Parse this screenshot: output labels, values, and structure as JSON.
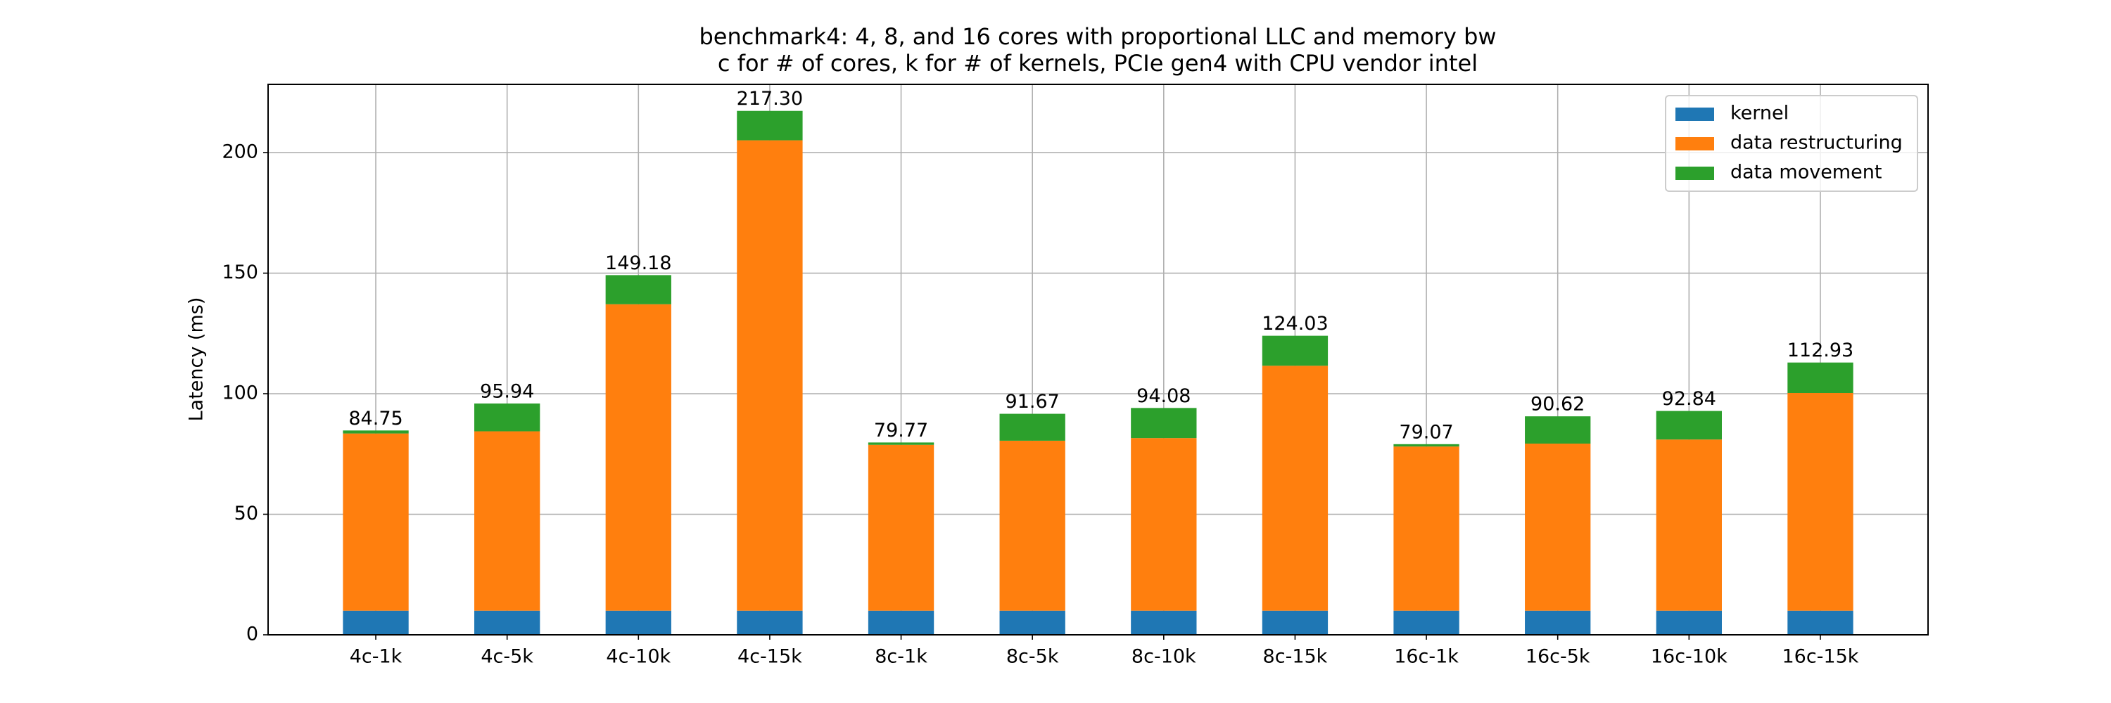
{
  "chart_data": {
    "type": "stacked_bar",
    "title": "benchmark4: 4, 8, and 16 cores with proportional LLC and memory bw",
    "subtitle": "c for # of cores, k for # of kernels, PCIe gen4 with CPU vendor intel",
    "y_label": "Latency (ms)",
    "categories": [
      "4c-1k",
      "4c-5k",
      "4c-10k",
      "4c-15k",
      "8c-1k",
      "8c-5k",
      "8c-10k",
      "8c-15k",
      "16c-1k",
      "16c-5k",
      "16c-10k",
      "16c-15k"
    ],
    "series": [
      {
        "name": "kernel",
        "color": "#1f77b4",
        "values": [
          10,
          10,
          10,
          10,
          10,
          10,
          10,
          10,
          10,
          10,
          10,
          10
        ]
      },
      {
        "name": "data restructuring",
        "color": "#ff7f0e",
        "values": [
          73.5,
          74.4,
          127.1,
          195.1,
          68.8,
          70.5,
          71.6,
          101.6,
          68.1,
          69.3,
          71.0,
          90.3
        ]
      },
      {
        "name": "data movement",
        "color": "#2ca02c",
        "values": [
          1.25,
          11.54,
          12.08,
          12.2,
          0.97,
          11.17,
          12.48,
          12.43,
          0.97,
          11.32,
          11.84,
          12.63
        ]
      }
    ],
    "value_labels": [
      "84.75",
      "95.94",
      "149.18",
      "217.30",
      "79.77",
      "91.67",
      "94.08",
      "124.03",
      "79.07",
      "90.62",
      "92.84",
      "112.93"
    ],
    "ylim": [
      0,
      228.3
    ],
    "yticks": [
      0,
      50,
      100,
      150,
      200
    ],
    "grid": true,
    "legend": "upper right"
  }
}
